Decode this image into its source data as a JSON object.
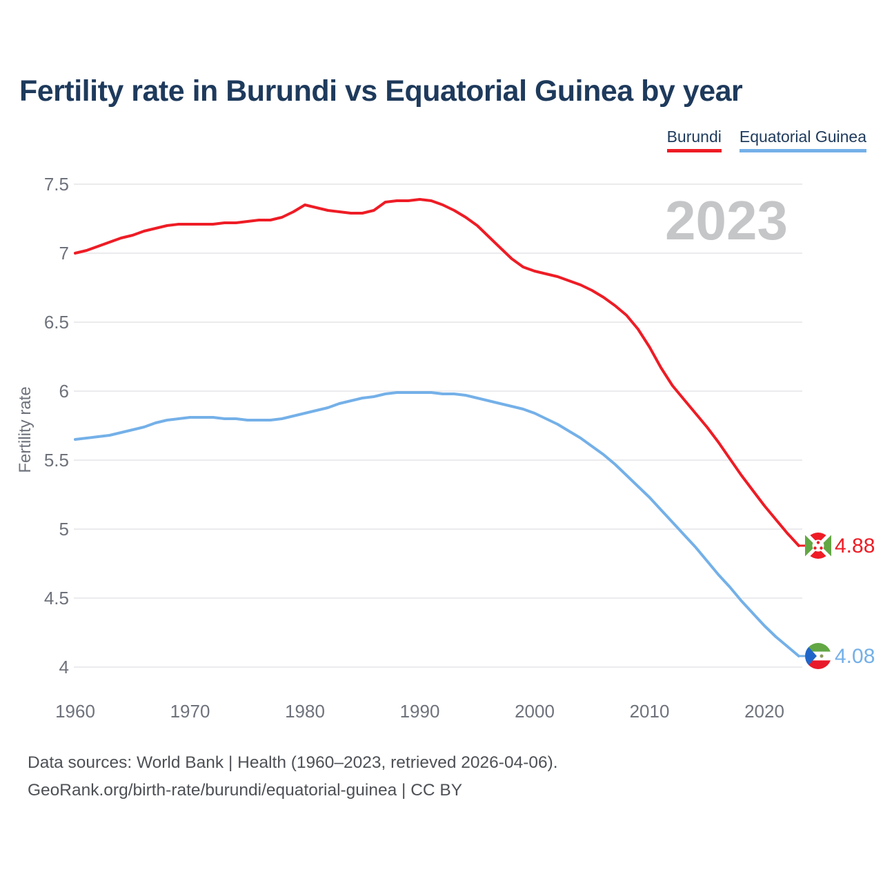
{
  "page": {
    "background": "#ffffff"
  },
  "header": {
    "title": "Fertility rate in Burundi vs Equatorial Guinea by year"
  },
  "legend": {
    "items": [
      {
        "label": "Burundi",
        "color": "#ee1c25"
      },
      {
        "label": "Equatorial Guinea",
        "color": "#74b0e8"
      }
    ]
  },
  "watermark": {
    "year": "2023",
    "color": "#c5c6c8"
  },
  "footer": {
    "line1": "Data sources: World Bank | Health (1960–2023, retrieved 2026-04-06).",
    "line2": "GeoRank.org/birth-rate/burundi/equatorial-guinea | CC BY"
  },
  "chart_data": {
    "type": "line",
    "title": "Fertility rate in Burundi vs Equatorial Guinea by year",
    "xlabel": "",
    "ylabel": "Fertility rate",
    "xlim": [
      1960,
      2023
    ],
    "ylim": [
      4.0,
      7.5
    ],
    "grid": "horizontal",
    "grid_color": "#ebebee",
    "tick_color": "#6e727b",
    "legend_position": "top-right",
    "x_ticks": [
      1960,
      1970,
      1980,
      1990,
      2000,
      2010,
      2020
    ],
    "y_ticks": [
      "7.5",
      "7",
      "6.5",
      "6",
      "5.5",
      "5",
      "4.5",
      "4"
    ],
    "x": [
      1960,
      1961,
      1962,
      1963,
      1964,
      1965,
      1966,
      1967,
      1968,
      1969,
      1970,
      1971,
      1972,
      1973,
      1974,
      1975,
      1976,
      1977,
      1978,
      1979,
      1980,
      1981,
      1982,
      1983,
      1984,
      1985,
      1986,
      1987,
      1988,
      1989,
      1990,
      1991,
      1992,
      1993,
      1994,
      1995,
      1996,
      1997,
      1998,
      1999,
      2000,
      2001,
      2002,
      2003,
      2004,
      2005,
      2006,
      2007,
      2008,
      2009,
      2010,
      2011,
      2012,
      2013,
      2014,
      2015,
      2016,
      2017,
      2018,
      2019,
      2020,
      2021,
      2022,
      2023
    ],
    "series": [
      {
        "name": "Burundi",
        "color": "#ee1c25",
        "end_label": "4.88",
        "flag": "burundi",
        "values": [
          7.0,
          7.02,
          7.05,
          7.08,
          7.11,
          7.13,
          7.16,
          7.18,
          7.2,
          7.21,
          7.21,
          7.21,
          7.21,
          7.22,
          7.22,
          7.23,
          7.24,
          7.24,
          7.26,
          7.3,
          7.35,
          7.33,
          7.31,
          7.3,
          7.29,
          7.29,
          7.31,
          7.37,
          7.38,
          7.38,
          7.39,
          7.38,
          7.35,
          7.31,
          7.26,
          7.2,
          7.12,
          7.04,
          6.96,
          6.9,
          6.87,
          6.85,
          6.83,
          6.8,
          6.77,
          6.73,
          6.68,
          6.62,
          6.55,
          6.45,
          6.32,
          6.17,
          6.04,
          5.94,
          5.84,
          5.74,
          5.63,
          5.51,
          5.39,
          5.28,
          5.17,
          5.07,
          4.97,
          4.88
        ]
      },
      {
        "name": "Equatorial Guinea",
        "color": "#74b0e8",
        "end_label": "4.08",
        "flag": "equatorial-guinea",
        "values": [
          5.65,
          5.66,
          5.67,
          5.68,
          5.7,
          5.72,
          5.74,
          5.77,
          5.79,
          5.8,
          5.81,
          5.81,
          5.81,
          5.8,
          5.8,
          5.79,
          5.79,
          5.79,
          5.8,
          5.82,
          5.84,
          5.86,
          5.88,
          5.91,
          5.93,
          5.95,
          5.96,
          5.98,
          5.99,
          5.99,
          5.99,
          5.99,
          5.98,
          5.98,
          5.97,
          5.95,
          5.93,
          5.91,
          5.89,
          5.87,
          5.84,
          5.8,
          5.76,
          5.71,
          5.66,
          5.6,
          5.54,
          5.47,
          5.39,
          5.31,
          5.23,
          5.14,
          5.05,
          4.96,
          4.87,
          4.77,
          4.67,
          4.58,
          4.48,
          4.39,
          4.3,
          4.22,
          4.15,
          4.08
        ]
      }
    ],
    "flags": {
      "burundi": {
        "red": "#ef1c25",
        "green": "#62a744",
        "white": "#ffffff"
      },
      "equatorial-guinea": {
        "green": "#62a744",
        "white": "#ffffff",
        "red": "#e8192b",
        "blue": "#2066c9",
        "emblem": "#8a9a5b"
      }
    }
  }
}
